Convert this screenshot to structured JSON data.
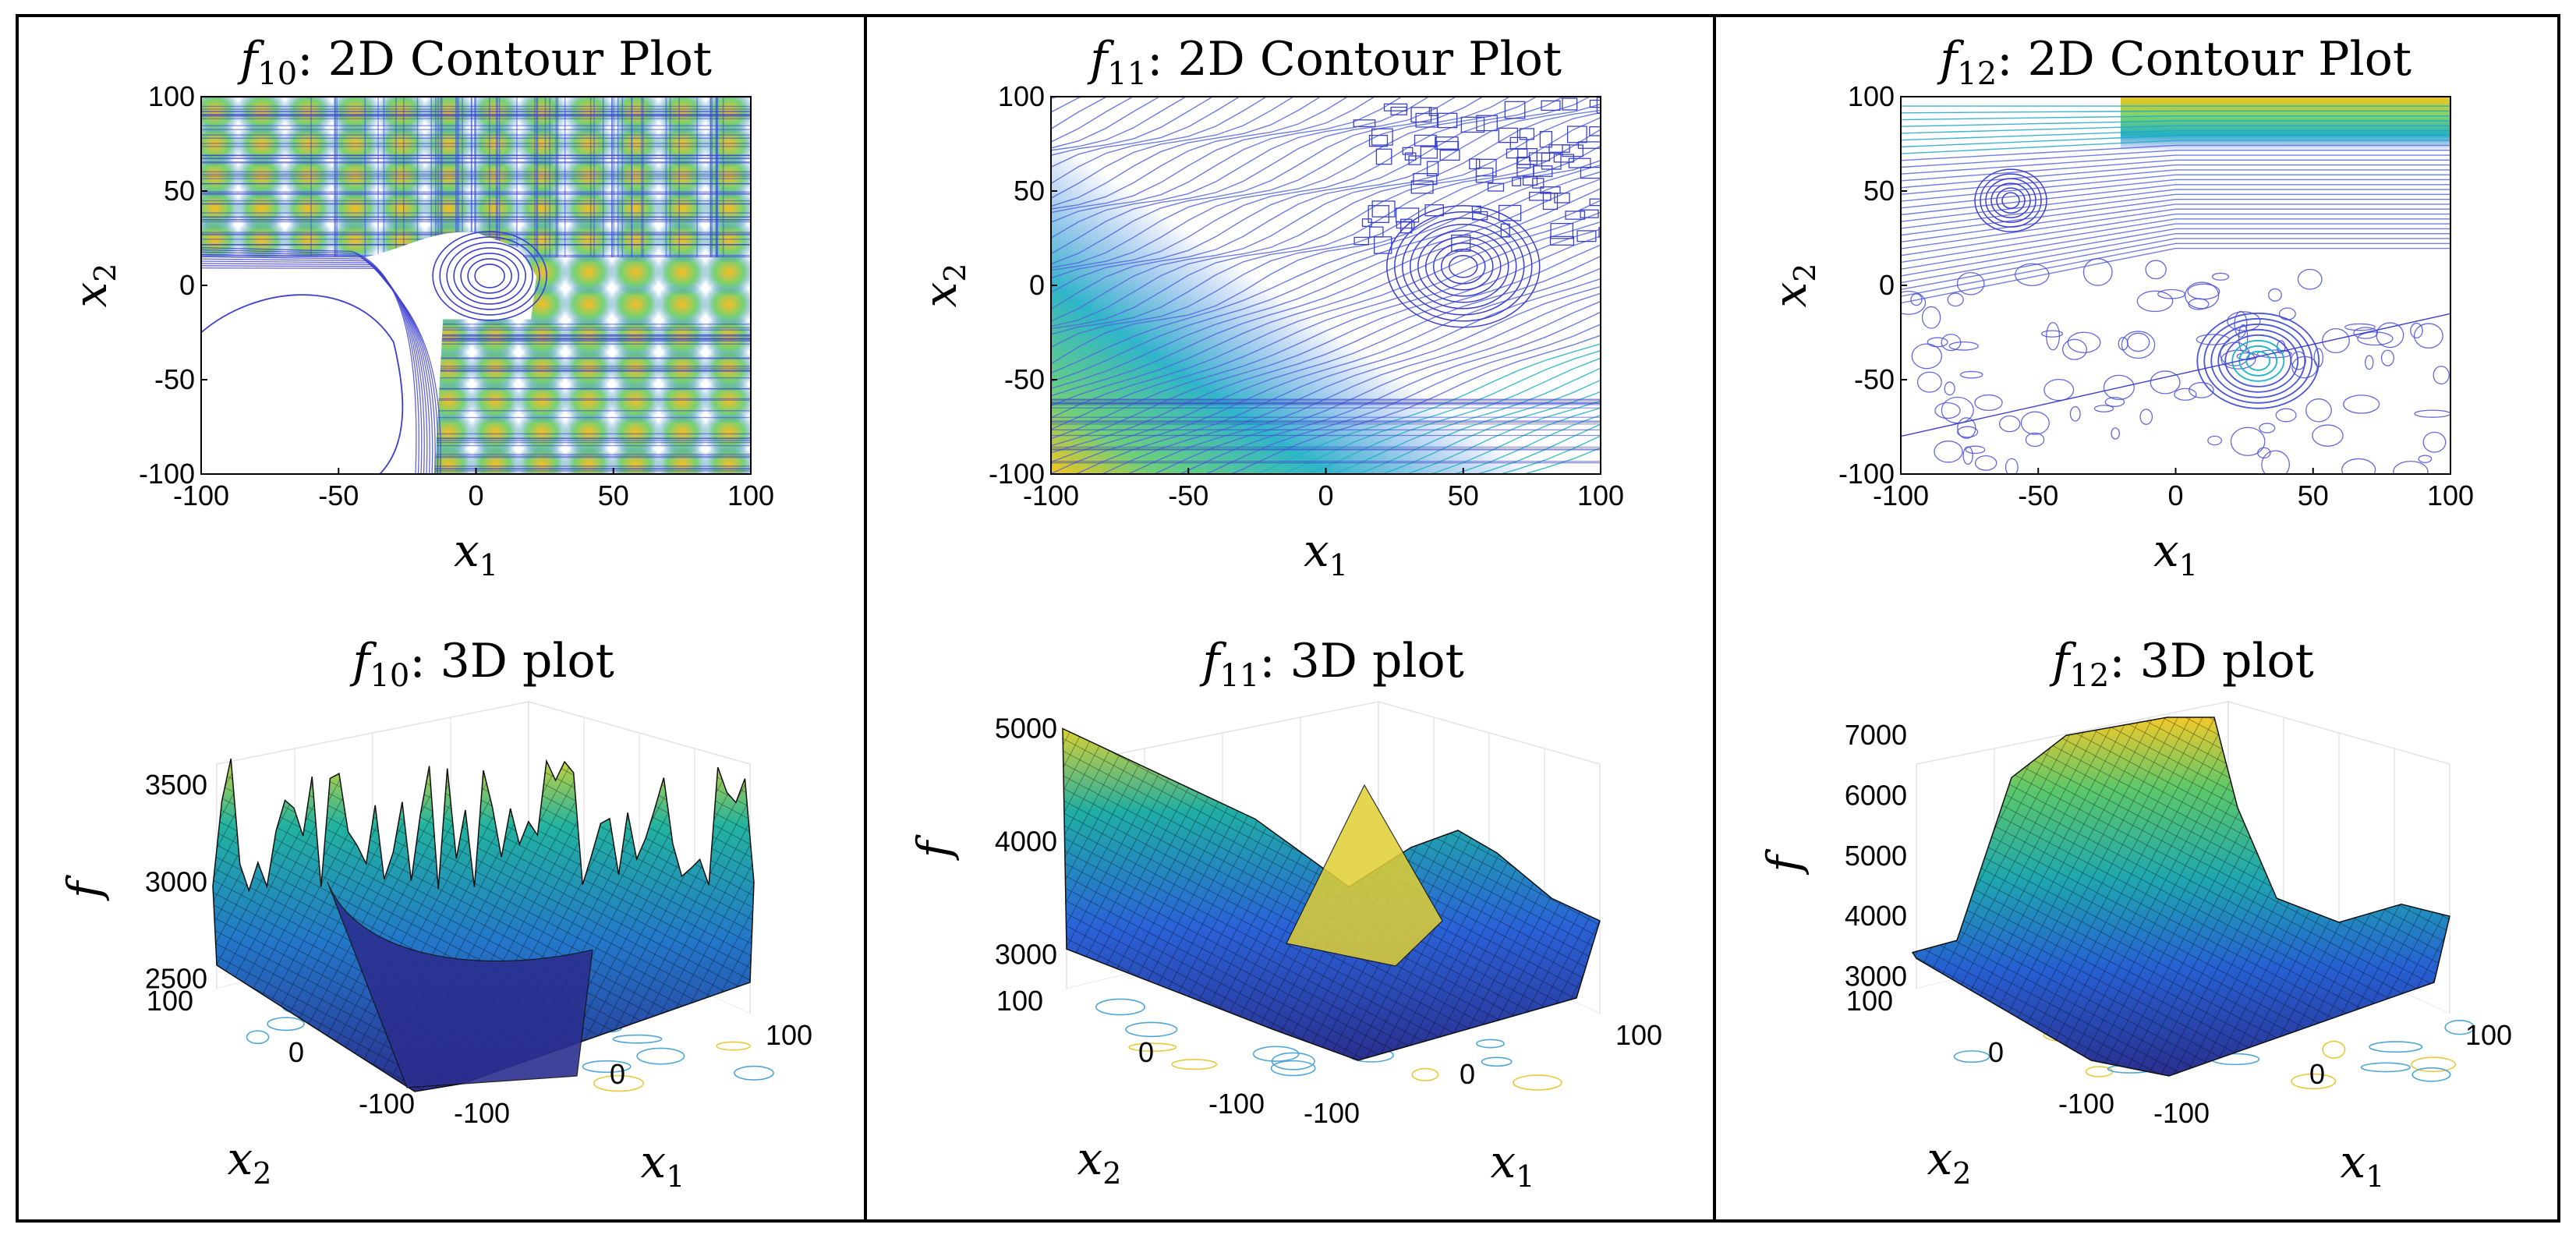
{
  "colors": {
    "border": "#000000",
    "grid": "#dcdcdc",
    "contour_low": "#3b3bd4",
    "contour_mid": "#21a6c9",
    "contour_high": "#f5c518",
    "surface_low": "#2b2f8f",
    "surface_mid": "#1fa3a8",
    "surface_high": "#f3d227"
  },
  "chart_data": [
    {
      "id": "f10-contour",
      "type": "contour",
      "title_func": "f",
      "title_sub": "10",
      "title_rest": ": 2D Contour Plot",
      "xlabel": "x",
      "xlabel_sub": "1",
      "ylabel": "x",
      "ylabel_sub": "2",
      "xlim": [
        -100,
        100
      ],
      "ylim": [
        -100,
        100
      ],
      "xticks": [
        "-100",
        "-50",
        "0",
        "50",
        "100"
      ],
      "yticks": [
        "-100",
        "-50",
        "0",
        "50",
        "100"
      ],
      "level_note": "dense grid of high-value peaks except low basin around (-60,-40)"
    },
    {
      "id": "f11-contour",
      "type": "contour",
      "title_func": "f",
      "title_sub": "11",
      "title_rest": ": 2D Contour Plot",
      "xlabel": "x",
      "xlabel_sub": "1",
      "ylabel": "x",
      "ylabel_sub": "2",
      "xlim": [
        -100,
        100
      ],
      "ylim": [
        -100,
        100
      ],
      "xticks": [
        "-100",
        "-50",
        "0",
        "50",
        "100"
      ],
      "yticks": [
        "-100",
        "-50",
        "0",
        "50",
        "100"
      ],
      "level_note": "diagonal smooth gradient, rugged top-right region, minimum near (50,10)"
    },
    {
      "id": "f12-contour",
      "type": "contour",
      "title_func": "f",
      "title_sub": "12",
      "title_rest": ": 2D Contour Plot",
      "xlabel": "x",
      "xlabel_sub": "1",
      "ylabel": "x",
      "ylabel_sub": "2",
      "xlim": [
        -100,
        100
      ],
      "ylim": [
        -100,
        100
      ],
      "xticks": [
        "-100",
        "-50",
        "0",
        "50",
        "100"
      ],
      "yticks": [
        "-100",
        "-50",
        "0",
        "50",
        "100"
      ],
      "level_note": "high ridge along top edge, rugged cluster near (30,-40)"
    },
    {
      "id": "f10-3d",
      "type": "surface",
      "title_func": "f",
      "title_sub": "10",
      "title_rest": ": 3D plot",
      "zlabel": "f",
      "xlabel": "x",
      "xlabel_sub": "1",
      "ylabel": "x",
      "ylabel_sub": "2",
      "zticks": [
        "2500",
        "3000",
        "3500"
      ],
      "xticks": [
        "-100",
        "0",
        "100"
      ],
      "yticks": [
        "100",
        "0",
        "-100"
      ],
      "zlim": [
        2450,
        3850
      ]
    },
    {
      "id": "f11-3d",
      "type": "surface",
      "title_func": "f",
      "title_sub": "11",
      "title_rest": ": 3D plot",
      "zlabel": "f",
      "xlabel": "x",
      "xlabel_sub": "1",
      "ylabel": "x",
      "ylabel_sub": "2",
      "zticks": [
        "3000",
        "4000",
        "5000"
      ],
      "xticks": [
        "-100",
        "0",
        "100"
      ],
      "yticks": [
        "100",
        "0",
        "-100"
      ],
      "zlim": [
        2700,
        5100
      ]
    },
    {
      "id": "f12-3d",
      "type": "surface",
      "title_func": "f",
      "title_sub": "12",
      "title_rest": ": 3D plot",
      "zlabel": "f",
      "xlabel": "x",
      "xlabel_sub": "1",
      "ylabel": "x",
      "ylabel_sub": "2",
      "zticks": [
        "3000",
        "4000",
        "5000",
        "6000",
        "7000"
      ],
      "xticks": [
        "-100",
        "0",
        "100"
      ],
      "yticks": [
        "100",
        "0",
        "-100"
      ],
      "zlim": [
        2800,
        7300
      ]
    }
  ]
}
